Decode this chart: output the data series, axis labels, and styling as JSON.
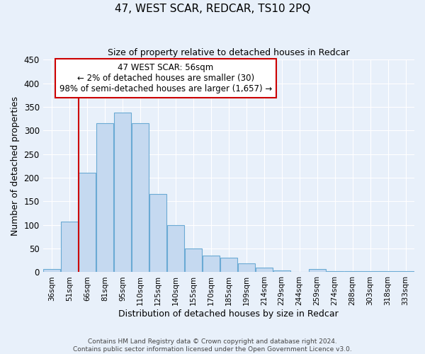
{
  "title": "47, WEST SCAR, REDCAR, TS10 2PQ",
  "subtitle": "Size of property relative to detached houses in Redcar",
  "xlabel": "Distribution of detached houses by size in Redcar",
  "ylabel": "Number of detached properties",
  "bar_color": "#c5d9f0",
  "bar_edge_color": "#6aaad4",
  "background_color": "#e8f0fa",
  "grid_color": "#ffffff",
  "categories": [
    "36sqm",
    "51sqm",
    "66sqm",
    "81sqm",
    "95sqm",
    "110sqm",
    "125sqm",
    "140sqm",
    "155sqm",
    "170sqm",
    "185sqm",
    "199sqm",
    "214sqm",
    "229sqm",
    "244sqm",
    "259sqm",
    "274sqm",
    "288sqm",
    "303sqm",
    "318sqm",
    "333sqm"
  ],
  "values": [
    7,
    107,
    210,
    315,
    338,
    315,
    165,
    100,
    50,
    35,
    30,
    18,
    10,
    3,
    0,
    6,
    2,
    2,
    2,
    2,
    2
  ],
  "ylim": [
    0,
    450
  ],
  "yticks": [
    0,
    50,
    100,
    150,
    200,
    250,
    300,
    350,
    400,
    450
  ],
  "marker_line_category_idx": 1,
  "annotation_lines": [
    "47 WEST SCAR: 56sqm",
    "← 2% of detached houses are smaller (30)",
    "98% of semi-detached houses are larger (1,657) →"
  ],
  "annotation_box_color": "#ffffff",
  "annotation_box_edge_color": "#cc0000",
  "marker_line_color": "#cc0000",
  "footer_lines": [
    "Contains HM Land Registry data © Crown copyright and database right 2024.",
    "Contains public sector information licensed under the Open Government Licence v3.0."
  ]
}
